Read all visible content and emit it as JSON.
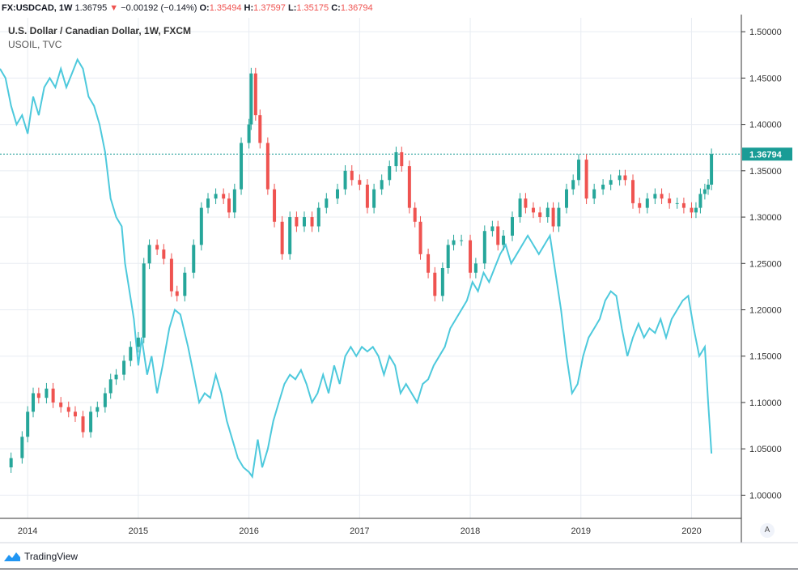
{
  "header": {
    "symbol": "FX:USDCAD, 1W",
    "last": "1.36795",
    "change": "−0.00192 (−0.14%)",
    "o_label": "O:",
    "o_value": "1.35494",
    "h_label": "H:",
    "h_value": "1.37597",
    "l_label": "L:",
    "l_value": "1.35175",
    "c_label": "C:",
    "c_value": "1.36794"
  },
  "legend": {
    "main": "U.S. Dollar / Canadian Dollar, 1W, FXCM",
    "secondary": "USOIL, TVC"
  },
  "price_label": "1.36794",
  "autoscale_label": "A",
  "branding": "TradingView",
  "colors": {
    "up": "#26a69a",
    "down": "#ef5350",
    "oil": "#4dc9dc",
    "grid": "#e8ecf2",
    "last_price": "#1a9c96"
  },
  "chart_data": {
    "type": "candlestick+line",
    "y_ticks": [
      "1.50000",
      "1.45000",
      "1.40000",
      "1.35000",
      "1.30000",
      "1.25000",
      "1.20000",
      "1.15000",
      "1.10000",
      "1.05000",
      "1.00000"
    ],
    "x_ticks": [
      "2014",
      "2015",
      "2016",
      "2017",
      "2018",
      "2019",
      "2020"
    ],
    "ylim": [
      0.975,
      1.515
    ],
    "xlim": [
      2013.75,
      2020.45
    ],
    "last_price": 1.36794,
    "usdcad_close": [
      [
        2013.75,
        1.03
      ],
      [
        2013.85,
        1.04
      ],
      [
        2013.95,
        1.063
      ],
      [
        2014.0,
        1.09
      ],
      [
        2014.05,
        1.11
      ],
      [
        2014.1,
        1.105
      ],
      [
        2014.17,
        1.115
      ],
      [
        2014.23,
        1.1
      ],
      [
        2014.3,
        1.095
      ],
      [
        2014.37,
        1.09
      ],
      [
        2014.43,
        1.085
      ],
      [
        2014.5,
        1.068
      ],
      [
        2014.57,
        1.09
      ],
      [
        2014.63,
        1.095
      ],
      [
        2014.7,
        1.11
      ],
      [
        2014.75,
        1.125
      ],
      [
        2014.8,
        1.13
      ],
      [
        2014.87,
        1.145
      ],
      [
        2014.93,
        1.16
      ],
      [
        2015.0,
        1.17
      ],
      [
        2015.05,
        1.25
      ],
      [
        2015.1,
        1.27
      ],
      [
        2015.17,
        1.265
      ],
      [
        2015.23,
        1.255
      ],
      [
        2015.3,
        1.22
      ],
      [
        2015.35,
        1.215
      ],
      [
        2015.42,
        1.24
      ],
      [
        2015.5,
        1.27
      ],
      [
        2015.57,
        1.31
      ],
      [
        2015.63,
        1.32
      ],
      [
        2015.7,
        1.325
      ],
      [
        2015.77,
        1.32
      ],
      [
        2015.82,
        1.305
      ],
      [
        2015.87,
        1.33
      ],
      [
        2015.93,
        1.38
      ],
      [
        2016.0,
        1.4
      ],
      [
        2016.02,
        1.455
      ],
      [
        2016.06,
        1.41
      ],
      [
        2016.1,
        1.38
      ],
      [
        2016.17,
        1.33
      ],
      [
        2016.23,
        1.295
      ],
      [
        2016.3,
        1.26
      ],
      [
        2016.37,
        1.3
      ],
      [
        2016.43,
        1.29
      ],
      [
        2016.5,
        1.3
      ],
      [
        2016.57,
        1.29
      ],
      [
        2016.63,
        1.31
      ],
      [
        2016.7,
        1.32
      ],
      [
        2016.8,
        1.33
      ],
      [
        2016.87,
        1.35
      ],
      [
        2016.93,
        1.34
      ],
      [
        2017.0,
        1.335
      ],
      [
        2017.07,
        1.31
      ],
      [
        2017.13,
        1.33
      ],
      [
        2017.2,
        1.34
      ],
      [
        2017.27,
        1.355
      ],
      [
        2017.33,
        1.37
      ],
      [
        2017.38,
        1.355
      ],
      [
        2017.45,
        1.31
      ],
      [
        2017.5,
        1.295
      ],
      [
        2017.55,
        1.26
      ],
      [
        2017.62,
        1.24
      ],
      [
        2017.68,
        1.215
      ],
      [
        2017.75,
        1.245
      ],
      [
        2017.8,
        1.27
      ],
      [
        2017.85,
        1.275
      ],
      [
        2017.92,
        1.275
      ],
      [
        2018.0,
        1.24
      ],
      [
        2018.05,
        1.25
      ],
      [
        2018.13,
        1.285
      ],
      [
        2018.2,
        1.29
      ],
      [
        2018.25,
        1.27
      ],
      [
        2018.3,
        1.28
      ],
      [
        2018.38,
        1.3
      ],
      [
        2018.45,
        1.32
      ],
      [
        2018.5,
        1.31
      ],
      [
        2018.57,
        1.305
      ],
      [
        2018.63,
        1.3
      ],
      [
        2018.7,
        1.31
      ],
      [
        2018.75,
        1.29
      ],
      [
        2018.8,
        1.31
      ],
      [
        2018.87,
        1.33
      ],
      [
        2018.93,
        1.34
      ],
      [
        2018.98,
        1.362
      ],
      [
        2019.05,
        1.32
      ],
      [
        2019.12,
        1.33
      ],
      [
        2019.2,
        1.335
      ],
      [
        2019.27,
        1.34
      ],
      [
        2019.35,
        1.345
      ],
      [
        2019.4,
        1.34
      ],
      [
        2019.47,
        1.315
      ],
      [
        2019.53,
        1.31
      ],
      [
        2019.6,
        1.32
      ],
      [
        2019.67,
        1.325
      ],
      [
        2019.73,
        1.32
      ],
      [
        2019.8,
        1.315
      ],
      [
        2019.87,
        1.315
      ],
      [
        2019.93,
        1.31
      ],
      [
        2020.0,
        1.305
      ],
      [
        2020.04,
        1.31
      ],
      [
        2020.08,
        1.325
      ],
      [
        2020.12,
        1.33
      ],
      [
        2020.15,
        1.335
      ],
      [
        2020.18,
        1.368
      ]
    ],
    "usoil": [
      [
        2013.75,
        1.46
      ],
      [
        2013.8,
        1.45
      ],
      [
        2013.85,
        1.42
      ],
      [
        2013.9,
        1.4
      ],
      [
        2013.95,
        1.41
      ],
      [
        2014.0,
        1.39
      ],
      [
        2014.05,
        1.43
      ],
      [
        2014.1,
        1.41
      ],
      [
        2014.15,
        1.44
      ],
      [
        2014.2,
        1.45
      ],
      [
        2014.25,
        1.44
      ],
      [
        2014.3,
        1.46
      ],
      [
        2014.35,
        1.44
      ],
      [
        2014.4,
        1.455
      ],
      [
        2014.45,
        1.47
      ],
      [
        2014.5,
        1.46
      ],
      [
        2014.55,
        1.43
      ],
      [
        2014.6,
        1.42
      ],
      [
        2014.65,
        1.4
      ],
      [
        2014.7,
        1.37
      ],
      [
        2014.75,
        1.32
      ],
      [
        2014.8,
        1.3
      ],
      [
        2014.85,
        1.29
      ],
      [
        2014.88,
        1.25
      ],
      [
        2014.92,
        1.22
      ],
      [
        2014.96,
        1.19
      ],
      [
        2015.0,
        1.14
      ],
      [
        2015.03,
        1.17
      ],
      [
        2015.08,
        1.13
      ],
      [
        2015.12,
        1.15
      ],
      [
        2015.17,
        1.11
      ],
      [
        2015.22,
        1.14
      ],
      [
        2015.28,
        1.18
      ],
      [
        2015.33,
        1.2
      ],
      [
        2015.38,
        1.195
      ],
      [
        2015.45,
        1.16
      ],
      [
        2015.5,
        1.13
      ],
      [
        2015.55,
        1.1
      ],
      [
        2015.6,
        1.11
      ],
      [
        2015.65,
        1.105
      ],
      [
        2015.7,
        1.13
      ],
      [
        2015.75,
        1.11
      ],
      [
        2015.8,
        1.08
      ],
      [
        2015.85,
        1.06
      ],
      [
        2015.9,
        1.04
      ],
      [
        2015.95,
        1.03
      ],
      [
        2016.0,
        1.025
      ],
      [
        2016.03,
        1.02
      ],
      [
        2016.08,
        1.06
      ],
      [
        2016.12,
        1.03
      ],
      [
        2016.17,
        1.05
      ],
      [
        2016.22,
        1.08
      ],
      [
        2016.27,
        1.1
      ],
      [
        2016.32,
        1.12
      ],
      [
        2016.37,
        1.13
      ],
      [
        2016.42,
        1.125
      ],
      [
        2016.47,
        1.135
      ],
      [
        2016.52,
        1.12
      ],
      [
        2016.57,
        1.1
      ],
      [
        2016.62,
        1.11
      ],
      [
        2016.67,
        1.13
      ],
      [
        2016.72,
        1.11
      ],
      [
        2016.77,
        1.14
      ],
      [
        2016.82,
        1.12
      ],
      [
        2016.87,
        1.15
      ],
      [
        2016.92,
        1.16
      ],
      [
        2016.97,
        1.15
      ],
      [
        2017.02,
        1.16
      ],
      [
        2017.07,
        1.155
      ],
      [
        2017.12,
        1.16
      ],
      [
        2017.17,
        1.15
      ],
      [
        2017.22,
        1.13
      ],
      [
        2017.27,
        1.15
      ],
      [
        2017.32,
        1.14
      ],
      [
        2017.37,
        1.11
      ],
      [
        2017.42,
        1.12
      ],
      [
        2017.47,
        1.11
      ],
      [
        2017.52,
        1.1
      ],
      [
        2017.57,
        1.12
      ],
      [
        2017.62,
        1.125
      ],
      [
        2017.67,
        1.14
      ],
      [
        2017.72,
        1.15
      ],
      [
        2017.77,
        1.16
      ],
      [
        2017.82,
        1.18
      ],
      [
        2017.87,
        1.19
      ],
      [
        2017.92,
        1.2
      ],
      [
        2017.97,
        1.21
      ],
      [
        2018.02,
        1.23
      ],
      [
        2018.07,
        1.22
      ],
      [
        2018.12,
        1.24
      ],
      [
        2018.17,
        1.23
      ],
      [
        2018.22,
        1.245
      ],
      [
        2018.27,
        1.26
      ],
      [
        2018.32,
        1.27
      ],
      [
        2018.37,
        1.25
      ],
      [
        2018.42,
        1.26
      ],
      [
        2018.47,
        1.27
      ],
      [
        2018.52,
        1.28
      ],
      [
        2018.57,
        1.27
      ],
      [
        2018.62,
        1.26
      ],
      [
        2018.67,
        1.27
      ],
      [
        2018.72,
        1.28
      ],
      [
        2018.77,
        1.24
      ],
      [
        2018.82,
        1.2
      ],
      [
        2018.87,
        1.15
      ],
      [
        2018.92,
        1.11
      ],
      [
        2018.97,
        1.12
      ],
      [
        2019.02,
        1.15
      ],
      [
        2019.07,
        1.17
      ],
      [
        2019.12,
        1.18
      ],
      [
        2019.17,
        1.19
      ],
      [
        2019.22,
        1.21
      ],
      [
        2019.27,
        1.22
      ],
      [
        2019.32,
        1.215
      ],
      [
        2019.37,
        1.18
      ],
      [
        2019.42,
        1.15
      ],
      [
        2019.47,
        1.17
      ],
      [
        2019.52,
        1.185
      ],
      [
        2019.57,
        1.17
      ],
      [
        2019.62,
        1.18
      ],
      [
        2019.67,
        1.175
      ],
      [
        2019.72,
        1.19
      ],
      [
        2019.77,
        1.17
      ],
      [
        2019.82,
        1.19
      ],
      [
        2019.87,
        1.2
      ],
      [
        2019.92,
        1.21
      ],
      [
        2019.97,
        1.215
      ],
      [
        2020.02,
        1.18
      ],
      [
        2020.07,
        1.15
      ],
      [
        2020.12,
        1.16
      ],
      [
        2020.15,
        1.1
      ],
      [
        2020.18,
        1.045
      ]
    ]
  }
}
